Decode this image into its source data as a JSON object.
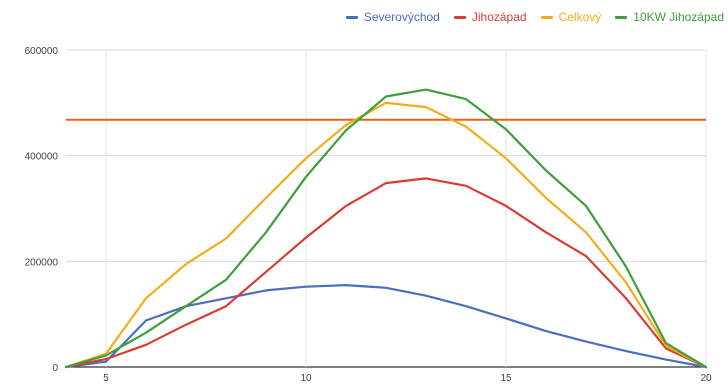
{
  "chart_data": {
    "type": "line",
    "xlim": [
      4,
      20
    ],
    "ylim": [
      0,
      600000
    ],
    "x_ticks": [
      5,
      10,
      15,
      20
    ],
    "y_ticks": [
      0,
      200000,
      400000,
      600000
    ],
    "x_tick_labels": [
      "5",
      "10",
      "15",
      "20"
    ],
    "y_tick_labels": [
      "0",
      "200000",
      "400000",
      "600000"
    ],
    "grid": true,
    "legend_position": "top-right",
    "series": [
      {
        "name": "Severovýchod",
        "color": "#4a6fc1",
        "x": [
          4,
          5,
          6,
          7,
          8,
          9,
          10,
          11,
          12,
          13,
          14,
          15,
          16,
          17,
          18,
          19,
          20
        ],
        "y": [
          0,
          10000,
          88000,
          115000,
          130000,
          145000,
          152000,
          155000,
          150000,
          135000,
          115000,
          92000,
          68000,
          48000,
          30000,
          14000,
          0
        ]
      },
      {
        "name": "Jihozápad",
        "color": "#d93c35",
        "x": [
          4,
          5,
          6,
          7,
          8,
          9,
          10,
          11,
          12,
          13,
          14,
          15,
          16,
          17,
          18,
          19,
          20
        ],
        "y": [
          0,
          15000,
          42000,
          80000,
          115000,
          180000,
          245000,
          305000,
          348000,
          357000,
          343000,
          305000,
          255000,
          210000,
          130000,
          35000,
          0
        ]
      },
      {
        "name": "Celkový",
        "color": "#f2ae1a",
        "x": [
          4,
          5,
          6,
          7,
          8,
          9,
          10,
          11,
          12,
          13,
          14,
          15,
          16,
          17,
          18,
          19,
          20
        ],
        "y": [
          0,
          25000,
          130000,
          195000,
          243000,
          320000,
          395000,
          458000,
          500000,
          492000,
          455000,
          395000,
          320000,
          255000,
          160000,
          40000,
          0
        ]
      },
      {
        "name": "10KW Jihozápad",
        "color": "#3f9f3a",
        "x": [
          4,
          5,
          6,
          7,
          8,
          9,
          10,
          11,
          12,
          13,
          14,
          15,
          16,
          17,
          18,
          19,
          20
        ],
        "y": [
          0,
          22000,
          65000,
          115000,
          165000,
          255000,
          360000,
          448000,
          512000,
          525000,
          507000,
          450000,
          372000,
          305000,
          190000,
          45000,
          0
        ]
      }
    ],
    "reference_line": {
      "y": 468000,
      "color": "#e2661d"
    }
  }
}
